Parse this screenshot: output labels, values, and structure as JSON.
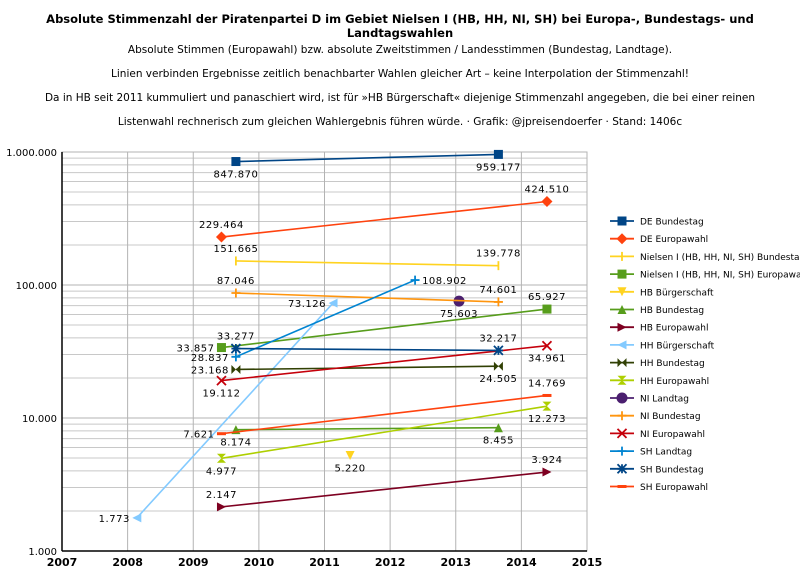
{
  "chart_data": {
    "type": "line",
    "title": "Absolute Stimmenzahl der Piratenpartei D im Gebiet Nielsen I (HB, HH, NI, SH) bei Europa-, Bundestags- und Landtagswahlen",
    "subtitle_lines": [
      "Absolute Stimmen (Europawahl) bzw. absolute Zweitstimmen / Landesstimmen (Bundestag, Landtage).",
      "Linien verbinden Ergebnisse zeitlich benachbarter Wahlen gleicher Art – keine Interpolation der Stimmenzahl!",
      "Da in HB seit 2011 kummuliert und panaschiert wird, ist für »HB Bürgerschaft« diejenige Stimmenzahl angegeben, die bei einer reinen",
      "Listenwahl rechnerisch zum gleichen Wahlergebnis führen würde. · Grafik: @jpreisendoerfer · Stand: 1406c"
    ],
    "xlabel": "",
    "ylabel": "",
    "xlim": [
      2007,
      2015
    ],
    "ylim": [
      1000,
      1000000
    ],
    "yscale": "log",
    "x_ticks": [
      "2007",
      "2008",
      "2009",
      "2010",
      "2011",
      "2012",
      "2013",
      "2014",
      "2015"
    ],
    "y_ticks": [
      {
        "v": 1000,
        "label": "1.000"
      },
      {
        "v": 10000,
        "label": "10.000"
      },
      {
        "v": 100000,
        "label": "100.000"
      },
      {
        "v": 1000000,
        "label": "1.000.000"
      }
    ],
    "grid": true,
    "legend_position": "right",
    "series": [
      {
        "name": "DE Bundestag",
        "color": "#004586",
        "marker": "square",
        "points": [
          {
            "x": 2009.65,
            "y": 847870,
            "label": "847.870",
            "pos": "below"
          },
          {
            "x": 2013.65,
            "y": 959177,
            "label": "959.177",
            "pos": "below"
          }
        ]
      },
      {
        "name": "DE Europawahl",
        "color": "#ff420e",
        "marker": "diamond",
        "points": [
          {
            "x": 2009.43,
            "y": 229464,
            "label": "229.464",
            "pos": "above"
          },
          {
            "x": 2014.39,
            "y": 424510,
            "label": "424.510",
            "pos": "above"
          }
        ]
      },
      {
        "name": "Nielsen I (HB, HH, NI, SH) Bundestag",
        "color": "#ffd320",
        "marker": "bar",
        "points": [
          {
            "x": 2009.65,
            "y": 151665,
            "label": "151.665",
            "pos": "above"
          },
          {
            "x": 2013.65,
            "y": 139778,
            "label": "139.778",
            "pos": "above"
          }
        ]
      },
      {
        "name": "Nielsen I (HB, HH, NI, SH) Europawahl",
        "color": "#579d1c",
        "marker": "square",
        "points": [
          {
            "x": 2009.43,
            "y": 33857,
            "label": "33.857",
            "pos": "left"
          },
          {
            "x": 2014.39,
            "y": 65927,
            "label": "65.927",
            "pos": "above"
          }
        ]
      },
      {
        "name": "HB Bürgerschaft",
        "color": "#ffd320",
        "marker": "tri-down",
        "points": [
          {
            "x": 2011.39,
            "y": 5220,
            "label": "5.220",
            "pos": "below"
          }
        ]
      },
      {
        "name": "HB Bundestag",
        "color": "#579d1c",
        "marker": "tri-up",
        "points": [
          {
            "x": 2009.65,
            "y": 8174,
            "label": "8.174",
            "pos": "below"
          },
          {
            "x": 2013.65,
            "y": 8455,
            "label": "8.455",
            "pos": "below"
          }
        ]
      },
      {
        "name": "HB Europawahl",
        "color": "#7e0021",
        "marker": "tri-right",
        "points": [
          {
            "x": 2009.43,
            "y": 2147,
            "label": "2.147",
            "pos": "above"
          },
          {
            "x": 2014.39,
            "y": 3924,
            "label": "3.924",
            "pos": "above"
          }
        ]
      },
      {
        "name": "HH Bürgerschaft",
        "color": "#83caff",
        "marker": "tri-left",
        "points": [
          {
            "x": 2008.14,
            "y": 1773,
            "label": "1.773",
            "pos": "left"
          },
          {
            "x": 2011.13,
            "y": 73126,
            "label": "73.126",
            "pos": "left"
          }
        ]
      },
      {
        "name": "HH Bundestag",
        "color": "#314004",
        "marker": "bowtie",
        "points": [
          {
            "x": 2009.65,
            "y": 23168,
            "label": "23.168",
            "pos": "left"
          },
          {
            "x": 2013.65,
            "y": 24505,
            "label": "24.505",
            "pos": "below"
          }
        ]
      },
      {
        "name": "HH Europawahl",
        "color": "#aecf00",
        "marker": "hourglass",
        "points": [
          {
            "x": 2009.43,
            "y": 4977,
            "label": "4.977",
            "pos": "below"
          },
          {
            "x": 2014.39,
            "y": 12273,
            "label": "12.273",
            "pos": "below"
          }
        ]
      },
      {
        "name": "NI Landtag",
        "color": "#4b1f6f",
        "marker": "circle",
        "points": [
          {
            "x": 2013.05,
            "y": 75603,
            "label": "75.603",
            "pos": "below"
          }
        ]
      },
      {
        "name": "NI Bundestag",
        "color": "#ff950e",
        "marker": "plus",
        "points": [
          {
            "x": 2009.65,
            "y": 87046,
            "label": "87.046",
            "pos": "above"
          },
          {
            "x": 2013.65,
            "y": 74601,
            "label": "74.601",
            "pos": "above"
          }
        ]
      },
      {
        "name": "NI Europawahl",
        "color": "#c5000b",
        "marker": "x",
        "points": [
          {
            "x": 2009.43,
            "y": 19112,
            "label": "19.112",
            "pos": "below"
          },
          {
            "x": 2014.39,
            "y": 34961,
            "label": "34.961",
            "pos": "below"
          }
        ]
      },
      {
        "name": "SH Landtag",
        "color": "#0084d1",
        "marker": "plus",
        "points": [
          {
            "x": 2009.65,
            "y": 28837,
            "label": "28.837",
            "pos": "left"
          },
          {
            "x": 2012.38,
            "y": 108902,
            "label": "108.902",
            "pos": "right"
          }
        ]
      },
      {
        "name": "SH Bundestag",
        "color": "#004586",
        "marker": "asterisk",
        "points": [
          {
            "x": 2009.65,
            "y": 33277,
            "label": "33.277",
            "pos": "above"
          },
          {
            "x": 2013.65,
            "y": 32217,
            "label": "32.217",
            "pos": "above"
          }
        ]
      },
      {
        "name": "SH Europawahl",
        "color": "#ff420e",
        "marker": "dash",
        "points": [
          {
            "x": 2009.43,
            "y": 7621,
            "label": "7.621",
            "pos": "left"
          },
          {
            "x": 2014.39,
            "y": 14769,
            "label": "14.769",
            "pos": "above"
          }
        ]
      }
    ]
  }
}
